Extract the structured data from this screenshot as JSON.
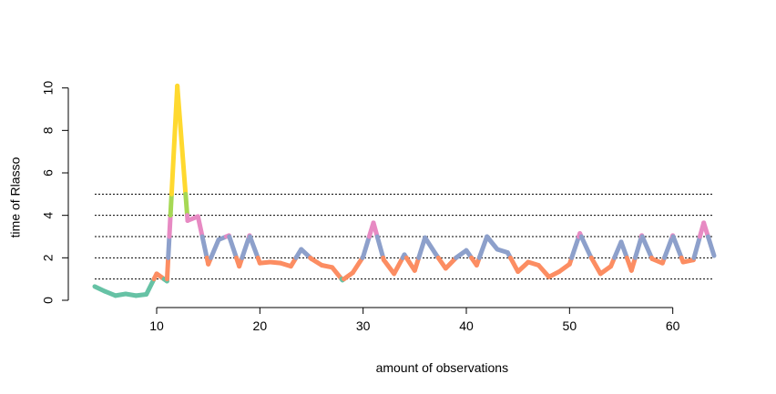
{
  "chart_data": {
    "type": "line",
    "xlabel": "amount of observations",
    "ylabel": "time of Rlasso",
    "xlim": [
      4,
      64
    ],
    "ylim": [
      0,
      10.2
    ],
    "x_ticks": [
      10,
      20,
      30,
      40,
      50,
      60
    ],
    "y_ticks": [
      0,
      2,
      4,
      6,
      8,
      10
    ],
    "reference_lines": [
      1,
      2,
      3,
      4,
      5
    ],
    "grid": false,
    "colors": {
      "band_lt1": "#66c2a5",
      "band_1_2": "#fc8d62",
      "band_2_3": "#8da0cb",
      "band_3_4": "#e78ac3",
      "band_4_5": "#a6d854",
      "band_gt5": "#ffd92f"
    },
    "series": [
      {
        "x": [
          4,
          5,
          6,
          7,
          8,
          9,
          10,
          11,
          12,
          13,
          14,
          15,
          16,
          17,
          18,
          19,
          20,
          21,
          22,
          23,
          24,
          25,
          26,
          27,
          28,
          29,
          30,
          31,
          32,
          33,
          34,
          35,
          36,
          37,
          38,
          39,
          40,
          41,
          42,
          43,
          44,
          45,
          46,
          47,
          48,
          49,
          50,
          51,
          52,
          53,
          54,
          55,
          56,
          57,
          58,
          59,
          60,
          61,
          62,
          63,
          64
        ],
        "y": [
          0.65,
          0.42,
          0.22,
          0.3,
          0.22,
          0.28,
          1.25,
          0.9,
          10.1,
          3.75,
          3.95,
          1.7,
          2.85,
          3.05,
          1.6,
          3.05,
          1.75,
          1.8,
          1.75,
          1.6,
          2.4,
          1.95,
          1.65,
          1.55,
          0.95,
          1.3,
          2.05,
          3.65,
          1.9,
          1.25,
          2.15,
          1.4,
          2.95,
          2.2,
          1.5,
          2.0,
          2.35,
          1.65,
          3.0,
          2.4,
          2.25,
          1.35,
          1.8,
          1.65,
          1.1,
          1.35,
          1.7,
          3.15,
          2.1,
          1.25,
          1.6,
          2.75,
          1.4,
          3.05,
          1.95,
          1.75,
          3.05,
          1.8,
          1.9,
          3.65,
          2.1
        ]
      }
    ]
  }
}
